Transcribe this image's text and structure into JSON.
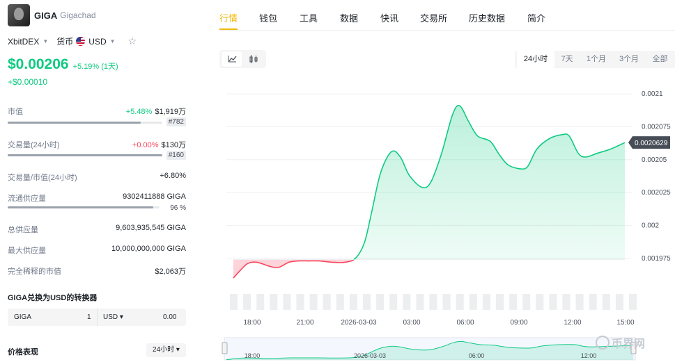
{
  "coin": {
    "symbol": "GIGA",
    "name": "Gigachad"
  },
  "exchange": {
    "name": "XbitDEX",
    "currency_label": "货币",
    "currency": "USD"
  },
  "price": {
    "value": "$0.00206",
    "change": "+5.19% (1天)",
    "abs_change": "+$0.00010"
  },
  "stats": {
    "market_cap": {
      "label": "市值",
      "pct": "+5.48%",
      "value": "$1,919万",
      "rank": "#782"
    },
    "volume": {
      "label": "交易量(24小时)",
      "pct": "+0.00%",
      "value": "$130万",
      "rank": "#160"
    },
    "vol_mcap": {
      "label": "交易量/市值(24小时)",
      "value": "+6.80%"
    },
    "circulating": {
      "label": "流通供应量",
      "value": "9302411888 GIGA",
      "pct": "96 %"
    },
    "total_supply": {
      "label": "总供应量",
      "value": "9,603,935,545 GIGA"
    },
    "max_supply": {
      "label": "最大供应量",
      "value": "10,000,000,000 GIGA"
    },
    "fdv": {
      "label": "完全稀释的市值",
      "value": "$2,063万"
    }
  },
  "converter": {
    "title": "GIGA兑换为USD的转换器",
    "from": "GIGA",
    "from_value": "1",
    "to": "USD ▾",
    "to_value": "0.00"
  },
  "performance": {
    "title": "价格表现",
    "period": "24小时 ▾"
  },
  "tabs": [
    "行情",
    "钱包",
    "工具",
    "数据",
    "快讯",
    "交易所",
    "历史数据",
    "简介"
  ],
  "ranges": [
    "24小时",
    "7天",
    "1个月",
    "3个月",
    "全部"
  ],
  "chart_data": {
    "type": "line",
    "x_labels": [
      "18:00",
      "21:00",
      "2026-03-03",
      "03:00",
      "06:00",
      "09:00",
      "12:00",
      "15:00"
    ],
    "y_ticks": [
      "0.0021",
      "0.002075",
      "0.00205",
      "0.002025",
      "0.002",
      "0.001975"
    ],
    "y_tick_values": [
      0.0021,
      0.002075,
      0.00205,
      0.002025,
      0.002,
      0.001975
    ],
    "ylim": [
      0.001968,
      0.002108
    ],
    "current_label": "0.0020629",
    "baseline": 0.001974,
    "points": [
      [
        0.0,
        0.00196
      ],
      [
        0.4,
        0.001966
      ],
      [
        0.8,
        0.001971
      ],
      [
        1.3,
        0.001972
      ],
      [
        2.0,
        0.001969
      ],
      [
        2.5,
        0.001968
      ],
      [
        3.1,
        0.001972
      ],
      [
        3.6,
        0.001973
      ],
      [
        4.2,
        0.001973
      ],
      [
        4.8,
        0.001973
      ],
      [
        5.5,
        0.001972
      ],
      [
        6.2,
        0.001972
      ],
      [
        6.8,
        0.001975
      ],
      [
        7.3,
        0.001987
      ],
      [
        7.7,
        0.00201
      ],
      [
        8.2,
        0.00204
      ],
      [
        8.8,
        0.002056
      ],
      [
        9.3,
        0.002052
      ],
      [
        9.8,
        0.002038
      ],
      [
        10.5,
        0.002029
      ],
      [
        11.0,
        0.002033
      ],
      [
        11.6,
        0.002055
      ],
      [
        12.2,
        0.002084
      ],
      [
        12.6,
        0.002091
      ],
      [
        13.1,
        0.002079
      ],
      [
        13.6,
        0.002068
      ],
      [
        14.3,
        0.002064
      ],
      [
        14.8,
        0.002054
      ],
      [
        15.3,
        0.002046
      ],
      [
        16.0,
        0.002043
      ],
      [
        16.4,
        0.002045
      ],
      [
        16.9,
        0.002058
      ],
      [
        17.6,
        0.002066
      ],
      [
        18.3,
        0.002069
      ],
      [
        18.7,
        0.002068
      ],
      [
        19.2,
        0.002055
      ],
      [
        19.6,
        0.002052
      ],
      [
        20.3,
        0.002055
      ],
      [
        21.0,
        0.002058
      ],
      [
        21.8,
        0.002063
      ]
    ],
    "x_max": 21.8,
    "nav_labels": [
      "18:00",
      "2026-03-03",
      "06:00",
      "12:00"
    ]
  },
  "watermark": "币界网",
  "colors": {
    "up": "#0ecb81",
    "down": "#f6465d",
    "accent": "#f0b90b"
  }
}
